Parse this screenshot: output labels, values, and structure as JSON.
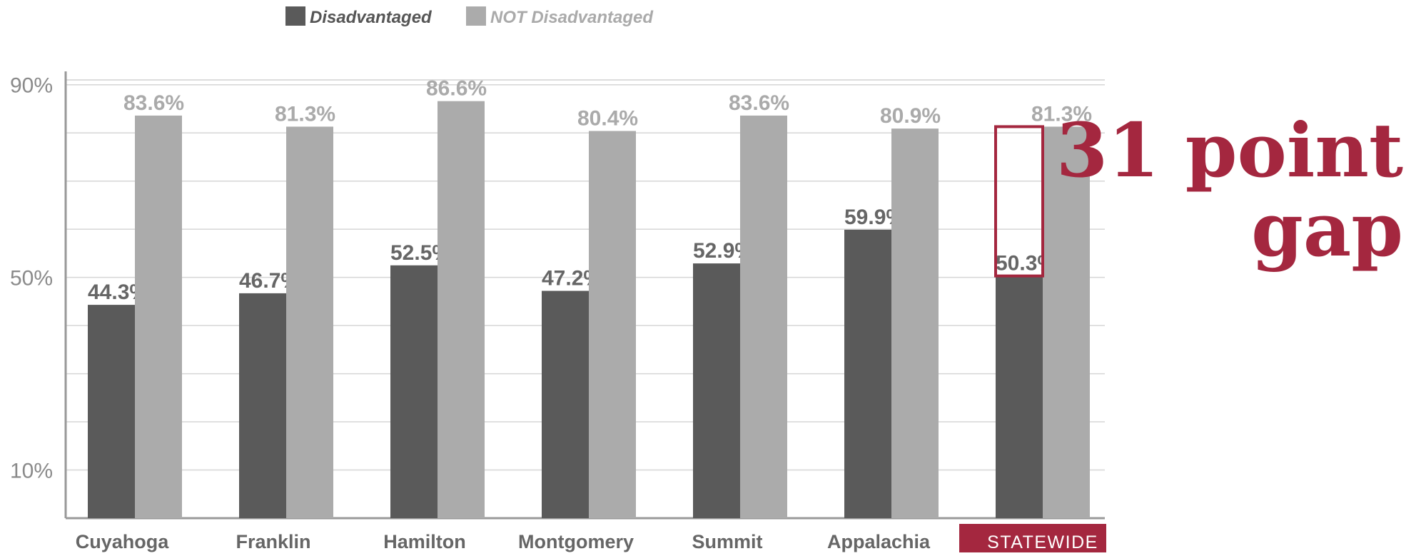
{
  "chart_data": {
    "type": "bar",
    "categories": [
      "Cuyahoga",
      "Franklin",
      "Hamilton",
      "Montgomery",
      "Summit",
      "Appalachia",
      "STATEWIDE"
    ],
    "series": [
      {
        "name": "Disadvantaged",
        "color": "#5a5a5a",
        "label_color": "#666666",
        "values": [
          44.3,
          46.7,
          52.5,
          47.2,
          52.9,
          59.9,
          50.3
        ],
        "value_labels": [
          "44.3%",
          "46.7%",
          "52.5%",
          "47.2%",
          "52.9%",
          "59.9%",
          "50.3%"
        ]
      },
      {
        "name": "NOT Disadvantaged",
        "color": "#ababab",
        "label_color": "#aaaaaa",
        "values": [
          83.6,
          81.3,
          86.6,
          80.4,
          83.6,
          80.9,
          81.3
        ],
        "value_labels": [
          "83.6%",
          "81.3%",
          "86.6%",
          "80.4%",
          "83.6%",
          "80.9%",
          "81.3%"
        ]
      }
    ],
    "ylim": [
      0,
      91
    ],
    "yticks": [
      {
        "value": 10,
        "label": "10%"
      },
      {
        "value": 50,
        "label": "50%"
      },
      {
        "value": 90,
        "label": "90%"
      }
    ],
    "minor_yticks": [
      20,
      30,
      40,
      60,
      70,
      80
    ],
    "grid": true,
    "legend": "top",
    "highlight_category": 6,
    "highlight_color": "#a4273f",
    "annotation": [
      "31 point",
      "gap"
    ]
  }
}
